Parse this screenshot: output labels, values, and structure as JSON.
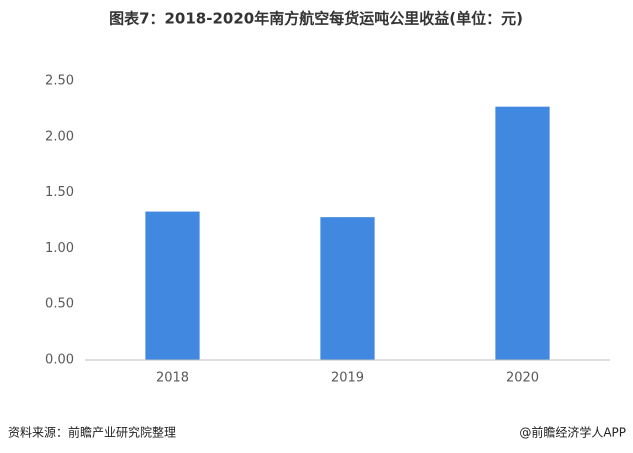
{
  "chart_data": {
    "type": "bar",
    "title": "图表7：2018-2020年南方航空每货运吨公里收益(单位：元)",
    "categories": [
      "2018",
      "2019",
      "2020"
    ],
    "values": [
      1.33,
      1.28,
      2.27
    ],
    "color": "#4189e0",
    "ylim": [
      0,
      2.5
    ],
    "yticks": [
      {
        "value": 0,
        "label": "0.00"
      },
      {
        "value": 0.5,
        "label": "0.50"
      },
      {
        "value": 1,
        "label": "1.00"
      },
      {
        "value": 1.5,
        "label": "1.50"
      },
      {
        "value": 2,
        "label": "2.00"
      },
      {
        "value": 2.5,
        "label": "2.50"
      }
    ],
    "grid": false
  },
  "source": "资料来源：前瞻产业研究院整理",
  "credit": "@前瞻经济学人APP"
}
